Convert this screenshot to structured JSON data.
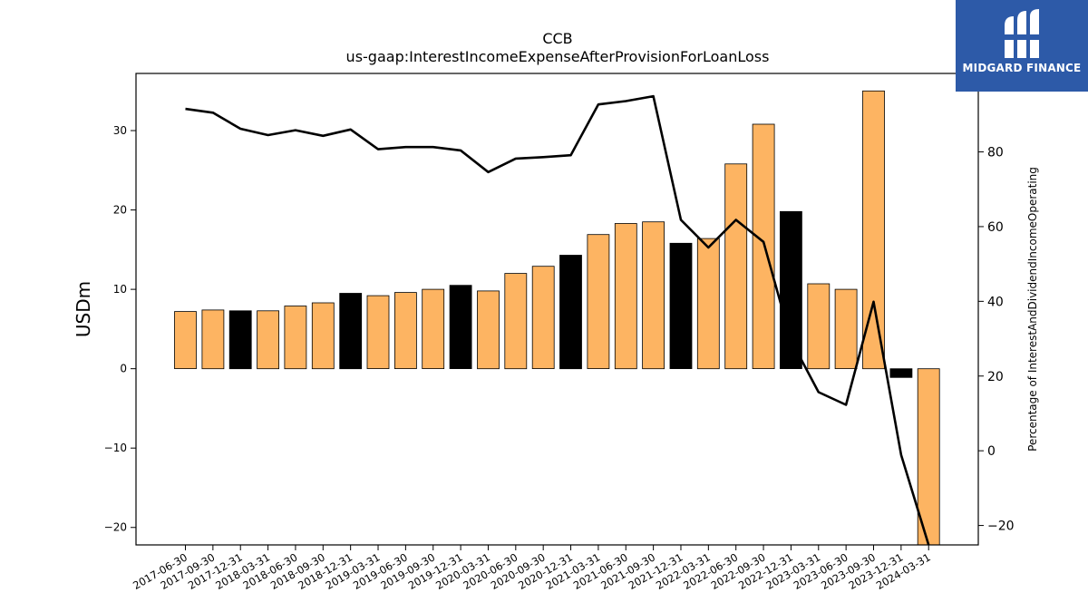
{
  "brand": {
    "name": "MIDGARD FINANCE",
    "bg_color": "#2d5aa8",
    "logo_icon": "midgard-logo-icon"
  },
  "chart_data": {
    "type": "bar",
    "title": "CCB",
    "subtitle": "us-gaap:InterestIncomeExpenseAfterProvisionForLoanLoss",
    "ylabel": "USDm",
    "y2label": "Percentage of InterestAndDividendIncomeOperating",
    "ylim": [
      -22.2,
      37.2
    ],
    "y2lim": [
      -25.2,
      101
    ],
    "yticks": [
      -20,
      -10,
      0,
      10,
      20,
      30
    ],
    "y2ticks": [
      -20,
      0,
      20,
      40,
      60,
      80
    ],
    "grid": false,
    "categories": [
      "2017-06-30",
      "2017-09-30",
      "2017-12-31",
      "2018-03-31",
      "2018-06-30",
      "2018-09-30",
      "2018-12-31",
      "2019-03-31",
      "2019-06-30",
      "2019-09-30",
      "2019-12-31",
      "2020-03-31",
      "2020-06-30",
      "2020-09-30",
      "2020-12-31",
      "2021-03-31",
      "2021-06-30",
      "2021-09-30",
      "2021-12-31",
      "2022-03-31",
      "2022-06-30",
      "2022-09-30",
      "2022-12-31",
      "2023-03-31",
      "2023-06-30",
      "2023-09-30",
      "2023-12-31",
      "2024-03-31"
    ],
    "colors": {
      "quarter": "#fdb462",
      "year_end": "#000000",
      "line": "#000000"
    },
    "series": [
      {
        "kind": "bar",
        "axis": "left",
        "values": [
          7.2,
          7.4,
          7.3,
          7.3,
          7.9,
          8.3,
          9.5,
          9.2,
          9.6,
          10.0,
          10.5,
          9.8,
          12.0,
          12.9,
          14.3,
          16.9,
          18.3,
          18.5,
          15.8,
          16.4,
          25.8,
          30.8,
          19.8,
          10.7,
          10.0,
          35.0,
          -1.1,
          -22.2
        ],
        "year_end": [
          false,
          false,
          true,
          false,
          false,
          false,
          true,
          false,
          false,
          false,
          true,
          false,
          false,
          false,
          true,
          false,
          false,
          false,
          true,
          false,
          false,
          false,
          true,
          false,
          false,
          false,
          true,
          false
        ]
      },
      {
        "kind": "line",
        "axis": "right",
        "values": [
          91.5,
          90.5,
          86.2,
          84.5,
          85.8,
          84.3,
          86.0,
          80.7,
          81.3,
          81.3,
          80.4,
          74.6,
          78.2,
          78.6,
          79.1,
          92.7,
          93.6,
          94.9,
          61.8,
          54.4,
          61.8,
          55.9,
          29.6,
          15.7,
          12.3,
          39.9,
          -1.1,
          -25.2
        ]
      }
    ]
  }
}
